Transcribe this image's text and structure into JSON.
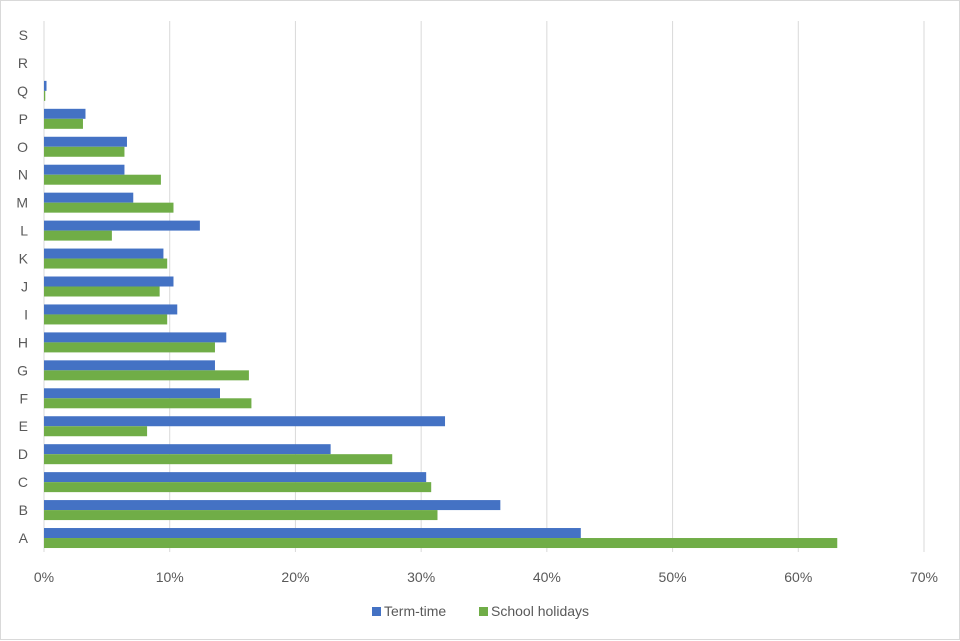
{
  "chart_data": {
    "type": "bar",
    "orientation": "horizontal",
    "categories": [
      "A",
      "B",
      "C",
      "D",
      "E",
      "F",
      "G",
      "H",
      "I",
      "J",
      "K",
      "L",
      "M",
      "N",
      "O",
      "P",
      "Q",
      "R",
      "S"
    ],
    "series": [
      {
        "name": "Term-time",
        "color": "#4472C4",
        "values": [
          42.7,
          36.3,
          30.4,
          22.8,
          31.9,
          14.0,
          13.6,
          14.5,
          10.6,
          10.3,
          9.5,
          12.4,
          7.1,
          6.4,
          6.6,
          3.3,
          0.2,
          0.0,
          0.0
        ]
      },
      {
        "name": "School holidays",
        "color": "#70AD47",
        "values": [
          63.1,
          31.3,
          30.8,
          27.7,
          8.2,
          16.5,
          16.3,
          13.6,
          9.8,
          9.2,
          9.8,
          5.4,
          10.3,
          9.3,
          6.4,
          3.1,
          0.1,
          0.0,
          0.0
        ]
      }
    ],
    "xlim": [
      0,
      70
    ],
    "xticks": [
      "0%",
      "10%",
      "20%",
      "30%",
      "40%",
      "50%",
      "60%",
      "70%"
    ],
    "grid": true,
    "legend_position": "bottom"
  }
}
